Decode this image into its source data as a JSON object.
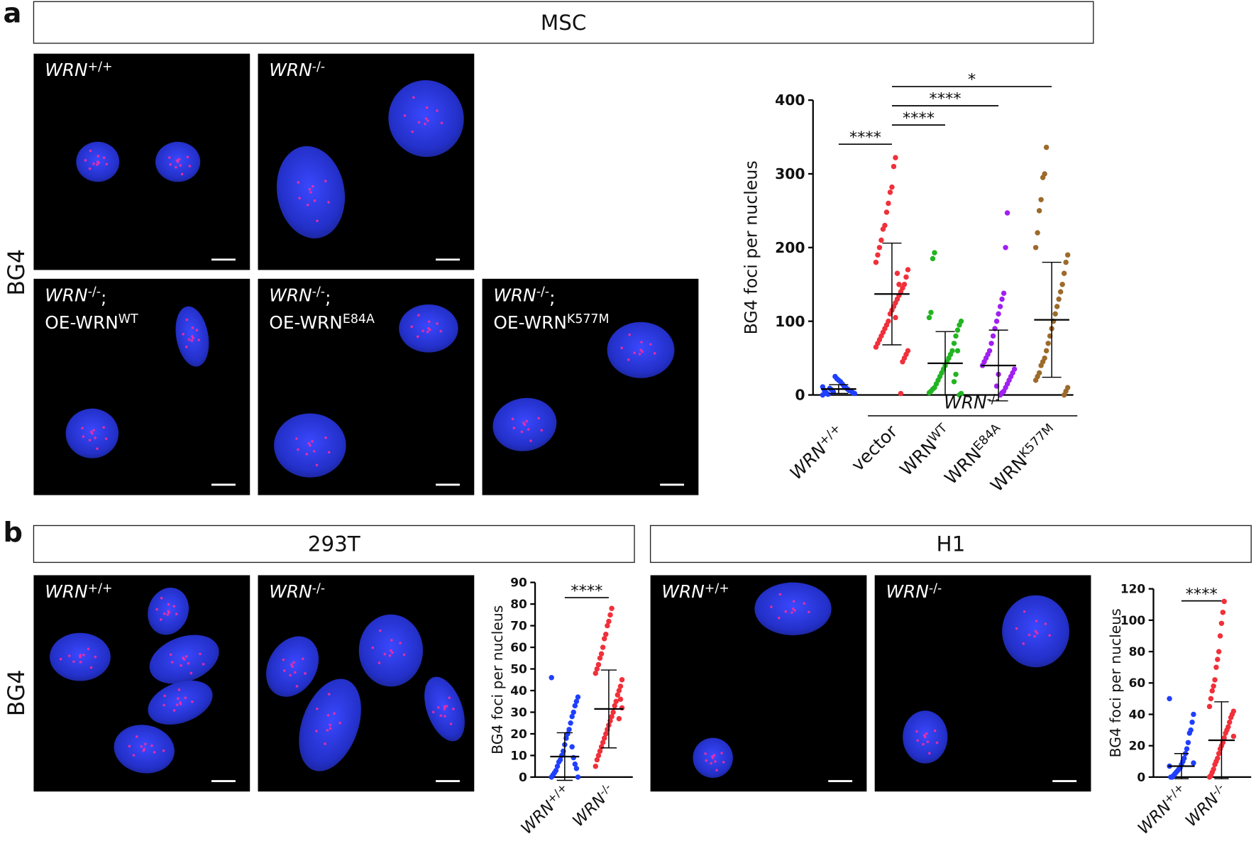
{
  "panel_a": {
    "letter": "a",
    "side_label": "BG4",
    "groups": [
      {
        "header": "MSC",
        "images": [
          [
            [
              {
                "text": "WRN",
                "style": "italic"
              },
              {
                "text": "+/+",
                "style": "sup"
              }
            ]
          ],
          [
            [
              {
                "text": "WRN",
                "style": "italic"
              },
              {
                "text": "-/-",
                "style": "sup"
              }
            ]
          ],
          [
            [
              {
                "text": "WRN",
                "style": "italic"
              },
              {
                "text": "-/-",
                "style": "sup"
              },
              {
                "text": ";"
              }
            ],
            [
              {
                "text": "OE-WRN"
              },
              {
                "text": "WT",
                "style": "sup"
              }
            ]
          ],
          [
            [
              {
                "text": "WRN",
                "style": "italic"
              },
              {
                "text": "-/-",
                "style": "sup"
              },
              {
                "text": ";"
              }
            ],
            [
              {
                "text": "OE-WRN"
              },
              {
                "text": "E84A",
                "style": "sup"
              }
            ]
          ],
          [
            [
              {
                "text": "WRN",
                "style": "italic"
              },
              {
                "text": "-/-",
                "style": "sup"
              },
              {
                "text": ";"
              }
            ],
            [
              {
                "text": "OE-WRN"
              },
              {
                "text": "K577M",
                "style": "sup"
              }
            ]
          ]
        ],
        "chart": {
          "type": "scatter",
          "ylabel": "BG4 foci per nucleus",
          "ylim": [
            0,
            400
          ],
          "yticks": [
            0,
            100,
            200,
            300,
            400
          ],
          "categories": [
            [
              {
                "text": "WRN",
                "style": "italic"
              },
              {
                "text": "+/+",
                "style": "sup"
              }
            ],
            [
              {
                "text": "vector"
              }
            ],
            [
              {
                "text": "WRN"
              },
              {
                "text": "WT",
                "style": "sup"
              }
            ],
            [
              {
                "text": "WRN"
              },
              {
                "text": "E84A",
                "style": "sup"
              }
            ],
            [
              {
                "text": "WRN"
              },
              {
                "text": "K577M",
                "style": "sup"
              }
            ]
          ],
          "group_label": [
            {
              "text": "WRN",
              "style": "italic"
            },
            {
              "text": "-/-",
              "style": "sup"
            }
          ],
          "series": [
            {
              "color": "#1f3fff",
              "mean": 8,
              "sd": 6,
              "values": [
                0,
                2,
                3,
                5,
                6,
                8,
                10,
                12,
                15,
                18,
                20,
                22,
                25,
                4,
                7,
                9,
                1,
                3,
                6,
                11
              ]
            },
            {
              "color": "#f0303a",
              "mean": 137,
              "sd": 69,
              "values": [
                322,
                310,
                282,
                275,
                260,
                248,
                230,
                225,
                210,
                200,
                190,
                180,
                170,
                160,
                150,
                145,
                140,
                135,
                130,
                125,
                120,
                115,
                110,
                100,
                95,
                90,
                85,
                80,
                75,
                70,
                65,
                60,
                55,
                50,
                45,
                2,
                150,
                165,
                105
              ]
            },
            {
              "color": "#22b522",
              "mean": 43,
              "sd": 43,
              "values": [
                193,
                185,
                112,
                105,
                100,
                95,
                88,
                80,
                70,
                60,
                55,
                50,
                45,
                40,
                35,
                30,
                25,
                20,
                15,
                10,
                8,
                5,
                3,
                2,
                0,
                60,
                28,
                18
              ]
            },
            {
              "color": "#a020f0",
              "mean": 40,
              "sd": 48,
              "values": [
                247,
                200,
                138,
                130,
                120,
                110,
                100,
                90,
                80,
                70,
                60,
                55,
                50,
                45,
                40,
                35,
                30,
                25,
                20,
                15,
                10,
                5,
                3,
                0,
                28,
                12
              ]
            },
            {
              "color": "#9c6a2a",
              "mean": 102,
              "sd": 78,
              "values": [
                336,
                300,
                295,
                265,
                250,
                220,
                200,
                190,
                180,
                165,
                150,
                140,
                130,
                120,
                110,
                100,
                90,
                80,
                70,
                60,
                50,
                45,
                40,
                30,
                25,
                20,
                10,
                5,
                0
              ]
            }
          ],
          "brackets": [
            "****",
            "****",
            "****",
            "*"
          ]
        }
      }
    ]
  },
  "panel_b": {
    "letter": "b",
    "side_label": "BG4",
    "groups": [
      {
        "header": "293T",
        "images": [
          [
            [
              {
                "text": "WRN",
                "style": "italic"
              },
              {
                "text": "+/+",
                "style": "sup"
              }
            ]
          ],
          [
            [
              {
                "text": "WRN",
                "style": "italic"
              },
              {
                "text": "-/-",
                "style": "sup"
              }
            ]
          ]
        ],
        "chart": {
          "type": "scatter",
          "ylabel": "BG4 foci per nucleus",
          "ylim": [
            0,
            90
          ],
          "yticks": [
            0,
            10,
            20,
            30,
            40,
            50,
            60,
            70,
            80,
            90
          ],
          "categories": [
            [
              {
                "text": "WRN",
                "style": "italic"
              },
              {
                "text": "+/+",
                "style": "sup"
              }
            ],
            [
              {
                "text": "WRN",
                "style": "italic"
              },
              {
                "text": "-/-",
                "style": "sup"
              }
            ]
          ],
          "series": [
            {
              "color": "#1f3fff",
              "mean": 9.5,
              "sd": 11,
              "values": [
                46,
                37,
                35,
                33,
                30,
                28,
                25,
                22,
                20,
                18,
                15,
                12,
                10,
                8,
                7,
                5,
                3,
                2,
                1,
                0,
                0,
                4,
                6,
                9,
                14
              ]
            },
            {
              "color": "#f0303a",
              "mean": 31.5,
              "sd": 18,
              "values": [
                78,
                75,
                72,
                70,
                66,
                64,
                60,
                57,
                55,
                52,
                50,
                48,
                45,
                42,
                40,
                38,
                35,
                33,
                30,
                28,
                26,
                24,
                22,
                20,
                18,
                16,
                14,
                12,
                10,
                8,
                5,
                32,
                36,
                27
              ]
            }
          ],
          "brackets": [
            "****"
          ]
        }
      },
      {
        "header": "H1",
        "images": [
          [
            [
              {
                "text": "WRN",
                "style": "italic"
              },
              {
                "text": "+/+",
                "style": "sup"
              }
            ]
          ],
          [
            [
              {
                "text": "WRN",
                "style": "italic"
              },
              {
                "text": "-/-",
                "style": "sup"
              }
            ]
          ]
        ],
        "chart": {
          "type": "scatter",
          "ylabel": "BG4 foci per nucleus",
          "ylim": [
            0,
            120
          ],
          "yticks": [
            0,
            20,
            40,
            60,
            80,
            100,
            120
          ],
          "categories": [
            [
              {
                "text": "WRN",
                "style": "italic"
              },
              {
                "text": "+/+",
                "style": "sup"
              }
            ],
            [
              {
                "text": "WRN",
                "style": "italic"
              },
              {
                "text": "-/-",
                "style": "sup"
              }
            ]
          ],
          "series": [
            {
              "color": "#1f3fff",
              "mean": 7,
              "sd": 8,
              "values": [
                50,
                40,
                35,
                30,
                28,
                22,
                18,
                15,
                12,
                10,
                8,
                6,
                5,
                4,
                3,
                2,
                1,
                0,
                0,
                7,
                9
              ]
            },
            {
              "color": "#f0303a",
              "mean": 23.5,
              "sd": 24.5,
              "values": [
                112,
                105,
                98,
                90,
                80,
                75,
                70,
                62,
                58,
                55,
                50,
                45,
                42,
                40,
                38,
                35,
                32,
                30,
                28,
                25,
                22,
                20,
                18,
                15,
                12,
                10,
                8,
                5,
                3,
                1,
                0,
                26
              ]
            }
          ],
          "brackets": [
            "****"
          ]
        }
      }
    ]
  }
}
